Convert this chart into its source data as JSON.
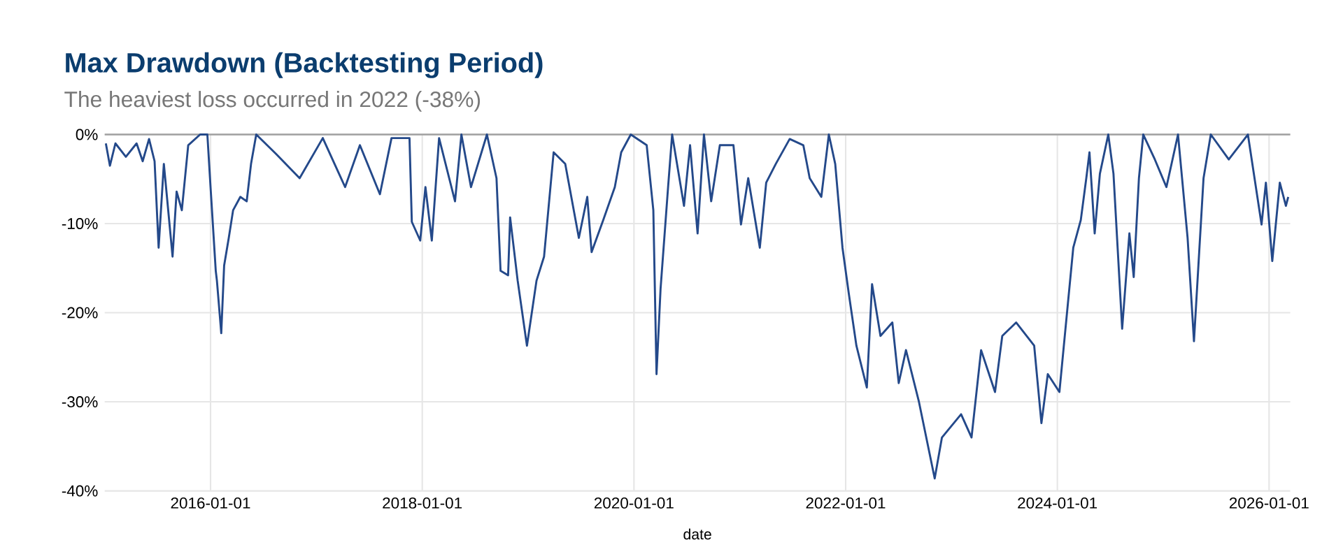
{
  "chart_data": {
    "type": "line",
    "title": "Max Drawdown (Backtesting Period)",
    "subtitle": "The heaviest loss occurred in 2022 (-38%)",
    "xlabel": "date",
    "series": [
      {
        "color": "#24498a",
        "x": [
          "2015-01-05",
          "2015-01-19",
          "2015-02-07",
          "2015-03-15",
          "2015-04-21",
          "2015-05-12",
          "2015-06-03",
          "2015-06-22",
          "2015-07-06",
          "2015-07-24",
          "2015-08-23",
          "2015-09-06",
          "2015-09-24",
          "2015-10-16",
          "2015-11-26",
          "2015-12-21",
          "2016-01-01",
          "2016-01-19",
          "2016-01-23",
          "2016-02-07",
          "2016-02-17",
          "2016-03-04",
          "2016-03-19",
          "2016-04-13",
          "2016-05-05",
          "2016-05-20",
          "2016-06-07",
          "2016-08-15",
          "2016-11-04",
          "2017-01-23",
          "2017-04-10",
          "2017-05-31",
          "2017-08-08",
          "2017-09-17",
          "2017-11-18",
          "2017-11-26",
          "2017-12-25",
          "2018-01-12",
          "2018-02-03",
          "2018-02-28",
          "2018-04-24",
          "2018-05-16",
          "2018-06-18",
          "2018-08-12",
          "2018-09-14",
          "2018-09-28",
          "2018-10-24",
          "2018-10-31",
          "2018-11-26",
          "2018-12-28",
          "2019-01-30",
          "2019-02-25",
          "2019-03-30",
          "2019-05-09",
          "2019-06-25",
          "2019-07-24",
          "2019-08-08",
          "2019-09-17",
          "2019-10-27",
          "2019-11-18",
          "2019-12-21",
          "2020-02-14",
          "2020-03-08",
          "2020-03-19",
          "2020-04-02",
          "2020-04-28",
          "2020-05-12",
          "2020-06-22",
          "2020-07-13",
          "2020-08-08",
          "2020-08-30",
          "2020-09-24",
          "2020-10-24",
          "2020-12-10",
          "2021-01-05",
          "2021-01-30",
          "2021-03-11",
          "2021-04-02",
          "2021-05-05",
          "2021-06-22",
          "2021-08-08",
          "2021-08-30",
          "2021-10-09",
          "2021-11-04",
          "2021-11-26",
          "2021-12-21",
          "2022-01-12",
          "2022-02-07",
          "2022-03-15",
          "2022-04-02",
          "2022-05-01",
          "2022-06-11",
          "2022-07-03",
          "2022-07-28",
          "2022-09-10",
          "2022-11-04",
          "2022-11-29",
          "2023-02-03",
          "2023-03-11",
          "2023-04-13",
          "2023-05-31",
          "2023-06-25",
          "2023-08-12",
          "2023-10-13",
          "2023-11-07",
          "2023-11-29",
          "2024-01-08",
          "2024-02-03",
          "2024-02-25",
          "2024-03-22",
          "2024-04-10",
          "2024-04-21",
          "2024-05-09",
          "2024-05-27",
          "2024-06-25",
          "2024-07-13",
          "2024-08-12",
          "2024-09-06",
          "2024-09-21",
          "2024-10-09",
          "2024-10-24",
          "2024-12-03",
          "2025-01-12",
          "2025-02-21",
          "2025-03-26",
          "2025-04-17",
          "2025-05-05",
          "2025-05-20",
          "2025-06-14",
          "2025-08-15",
          "2025-10-20",
          "2025-12-06",
          "2025-12-21",
          "2026-01-12",
          "2026-02-07",
          "2026-02-28",
          "2026-03-08"
        ],
        "values": [
          -1,
          -3.5,
          -1,
          -2.5,
          -1,
          -3,
          -0.5,
          -3,
          -12.7,
          -3.3,
          -13.7,
          -6.4,
          -8.5,
          -1.2,
          0,
          0,
          -5.9,
          -15.3,
          -16.4,
          -22.3,
          -14.7,
          -11.6,
          -8.5,
          -7,
          -7.5,
          -3.3,
          0,
          -2.2,
          -4.9,
          -0.4,
          -5.9,
          -1.2,
          -6.7,
          -0.4,
          -0.4,
          -9.8,
          -11.9,
          -5.9,
          -11.9,
          -0.4,
          -7.5,
          0,
          -5.9,
          0,
          -4.9,
          -15.3,
          -15.8,
          -9.3,
          -16.4,
          -23.7,
          -16.4,
          -13.7,
          -2,
          -3.3,
          -11.6,
          -7,
          -13.2,
          -9.6,
          -5.9,
          -2,
          0,
          -1.2,
          -8.5,
          -26.9,
          -17.3,
          -5.9,
          0,
          -8,
          -1.2,
          -11.1,
          0,
          -7.5,
          -1.2,
          -1.2,
          -10.1,
          -4.9,
          -12.7,
          -5.4,
          -3.3,
          -0.5,
          -1.2,
          -4.9,
          -7,
          0,
          -3.3,
          -12.7,
          -17.9,
          -23.7,
          -28.4,
          -16.8,
          -22.6,
          -21.1,
          -27.9,
          -24.2,
          -29.9,
          -38.6,
          -34,
          -31.4,
          -34,
          -24.2,
          -28.9,
          -22.6,
          -21.1,
          -23.7,
          -32.4,
          -26.9,
          -28.9,
          -20.1,
          -12.7,
          -9.6,
          -4.9,
          -2,
          -11.1,
          -4.4,
          0,
          -4.4,
          -21.8,
          -11.1,
          -16,
          -4.9,
          0,
          -2.8,
          -5.9,
          0,
          -11.6,
          -23.2,
          -13.2,
          -4.9,
          0,
          -2.8,
          0,
          -10.1,
          -5.4,
          -14.2,
          -5.4,
          -8,
          -7
        ]
      }
    ],
    "xlim": [
      "2015-01-01",
      "2026-03-15"
    ],
    "xticks": [
      "2016-01-01",
      "2018-01-01",
      "2020-01-01",
      "2022-01-01",
      "2024-01-01",
      "2026-01-01"
    ],
    "ylim": [
      -40,
      0
    ],
    "yticks": [
      {
        "value": -40,
        "label": "-40%"
      },
      {
        "value": -30,
        "label": "-30%"
      },
      {
        "value": -20,
        "label": "-20%"
      },
      {
        "value": -10,
        "label": "-10%"
      },
      {
        "value": 0,
        "label": "0%"
      }
    ],
    "grid": true,
    "legend": false,
    "marker": "none",
    "line_style": "solid"
  }
}
